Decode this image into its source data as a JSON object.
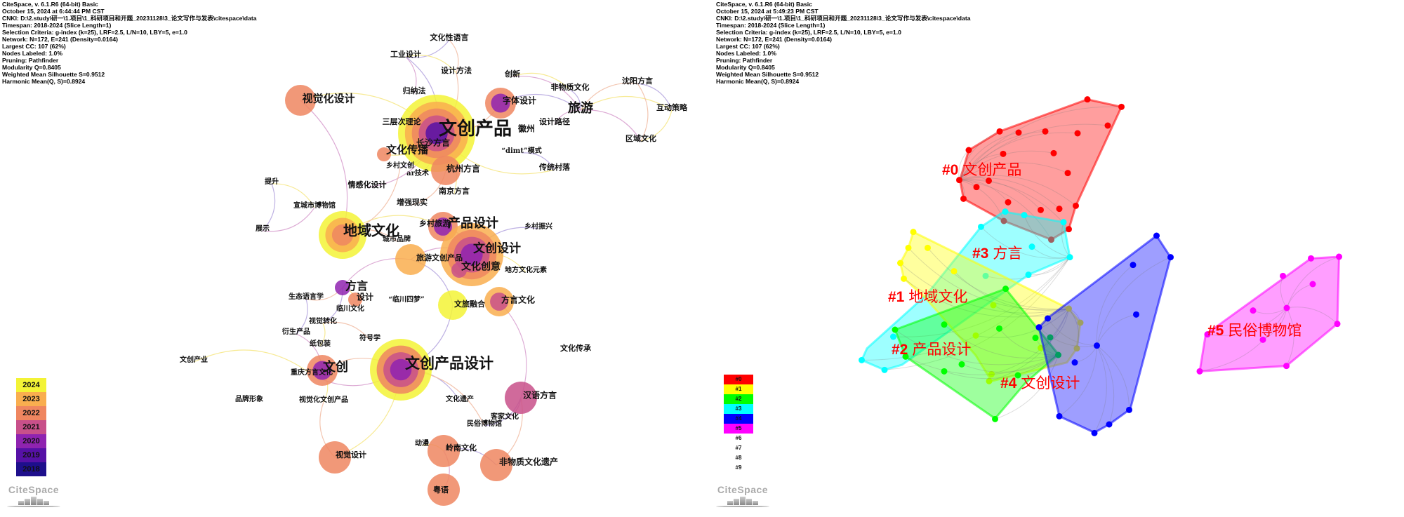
{
  "left": {
    "info_lines": [
      "CiteSpace, v. 6.1.R6 (64-bit) Basic",
      "October 15, 2024 at 6:44:44 PM CST",
      "CNKI: D:\\2.study\\研一\\1.项目\\1_科研项目和开题_20231128\\3_论文写作与发表\\citespace\\data",
      "Timespan: 2018-2024 (Slice Length=1)",
      "Selection Criteria: g-index (k=25), LRF=2.5, L/N=10, LBY=5, e=1.0",
      "Network: N=172, E=241 (Density=0.0164)",
      "Largest CC: 107 (62%)",
      "Nodes Labeled: 1.0%",
      "Pruning: Pathfinder",
      "Modularity Q=0.8405",
      "Weighted Mean Silhouette S=0.9512",
      "Harmonic Mean(Q, S)=0.8924"
    ],
    "year_legend": [
      {
        "year": "2024",
        "color": "#f3f336"
      },
      {
        "year": "2023",
        "color": "#f9ae4f"
      },
      {
        "year": "2022",
        "color": "#ef8660"
      },
      {
        "year": "2021",
        "color": "#c8508a"
      },
      {
        "year": "2020",
        "color": "#8f23b0"
      },
      {
        "year": "2019",
        "color": "#5611a6"
      },
      {
        "year": "2018",
        "color": "#1e0f8c"
      }
    ],
    "keywords": [
      {
        "label": "文化性语言"
      },
      {
        "label": "工业设计"
      },
      {
        "label": "设计方法"
      },
      {
        "label": "创新"
      },
      {
        "label": "非物质文化"
      },
      {
        "label": "归纳法"
      },
      {
        "label": "视觉化设计",
        "years": [
          "2022"
        ]
      },
      {
        "label": "字体设计",
        "years": [
          "2022",
          "2020"
        ]
      },
      {
        "label": "旅游"
      },
      {
        "label": "沈阳方言"
      },
      {
        "label": "互动策略"
      },
      {
        "label": "区域文化"
      },
      {
        "label": "设计路径"
      },
      {
        "label": "三层次理论"
      },
      {
        "label": "文创产品",
        "years": [
          "2024",
          "2023",
          "2022",
          "2021",
          "2019"
        ]
      },
      {
        "label": "徽州"
      },
      {
        "label": "长沙方言"
      },
      {
        "label": "“dimt”模式"
      },
      {
        "label": "文化传播",
        "years": [
          "2022"
        ]
      },
      {
        "label": "乡村文创"
      },
      {
        "label": "ar技术"
      },
      {
        "label": "杭州方言",
        "years": [
          "2022"
        ]
      },
      {
        "label": "传统村落"
      },
      {
        "label": "提升"
      },
      {
        "label": "情感化设计"
      },
      {
        "label": "南京方言"
      },
      {
        "label": "增强现实"
      },
      {
        "label": "宣城市博物馆"
      },
      {
        "label": "展示"
      },
      {
        "label": "地域文化",
        "years": [
          "2024",
          "2023",
          "2022"
        ]
      },
      {
        "label": "城市品牌"
      },
      {
        "label": "乡村旅游",
        "years": [
          "2022",
          "2020"
        ]
      },
      {
        "label": "产品设计"
      },
      {
        "label": "乡村振兴"
      },
      {
        "label": "文创设计",
        "years": [
          "2023",
          "2022",
          "2021",
          "2020"
        ]
      },
      {
        "label": "旅游文创产品",
        "years": [
          "2023"
        ]
      },
      {
        "label": "文化创意",
        "years": [
          "2021"
        ]
      },
      {
        "label": "地方文化元素"
      },
      {
        "label": "方言",
        "years": [
          "2020"
        ]
      },
      {
        "label": "生态语言学"
      },
      {
        "label": "设计",
        "years": [
          "2022"
        ]
      },
      {
        "label": "“临川四梦”"
      },
      {
        "label": "文旅融合",
        "years": [
          "2024"
        ]
      },
      {
        "label": "方言文化",
        "years": [
          "2023",
          "2021"
        ]
      },
      {
        "label": "临川文化"
      },
      {
        "label": "视觉转化"
      },
      {
        "label": "衍生产品"
      },
      {
        "label": "符号学"
      },
      {
        "label": "纸包装"
      },
      {
        "label": "文化传承"
      },
      {
        "label": "文创产业"
      },
      {
        "label": "文创",
        "years": [
          "2022",
          "2020"
        ]
      },
      {
        "label": "重庆方言文化"
      },
      {
        "label": "文创产品设计",
        "years": [
          "2024",
          "2022",
          "2021",
          "2020"
        ]
      },
      {
        "label": "品牌形象"
      },
      {
        "label": "视觉化文创产品"
      },
      {
        "label": "文化遗产"
      },
      {
        "label": "汉语方言",
        "years": [
          "2021"
        ]
      },
      {
        "label": "客家文化"
      },
      {
        "label": "民俗博物馆"
      },
      {
        "label": "动漫"
      },
      {
        "label": "岭南文化",
        "years": [
          "2022"
        ]
      },
      {
        "label": "视觉设计",
        "years": [
          "2022"
        ]
      },
      {
        "label": "非物质文化遗产",
        "years": [
          "2022"
        ]
      },
      {
        "label": "粤语",
        "years": [
          "2022"
        ]
      }
    ],
    "logo_text": "CiteSpace"
  },
  "right": {
    "info_lines": [
      "CiteSpace, v. 6.1.R6 (64-bit) Basic",
      "October 15, 2024 at 5:49:23 PM CST",
      "CNKI: D:\\2.study\\研一\\1.项目\\1_科研项目和开题_20231128\\3_论文写作与发表\\citespace\\data",
      "Timespan: 2018-2024 (Slice Length=1)",
      "Selection Criteria: g-index (k=25), LRF=2.5, L/N=10, LBY=5, e=1.0",
      "Network: N=172, E=241 (Density=0.0164)",
      "Largest CC: 107 (62%)",
      "Nodes Labeled: 1.0%",
      "Pruning: Pathfinder",
      "Modularity Q=0.8405",
      "Weighted Mean Silhouette S=0.9512",
      "Harmonic Mean(Q, S)=0.8924"
    ],
    "clusters": [
      {
        "id": "#0",
        "label": "文创产品",
        "color": "#ff0000"
      },
      {
        "id": "#1",
        "label": "地域文化",
        "color": "#ffff00"
      },
      {
        "id": "#2",
        "label": "产品设计",
        "color": "#00ff00"
      },
      {
        "id": "#3",
        "label": "方言",
        "color": "#00ffff"
      },
      {
        "id": "#4",
        "label": "文创设计",
        "color": "#0000ff"
      },
      {
        "id": "#5",
        "label": "民俗博物馆",
        "color": "#ff00ff"
      }
    ],
    "cluster_legend": [
      "#0",
      "#1",
      "#2",
      "#3",
      "#4",
      "#5",
      "#6",
      "#7",
      "#8",
      "#9"
    ],
    "label_color": "#ff0000",
    "logo_text": "CiteSpace"
  }
}
